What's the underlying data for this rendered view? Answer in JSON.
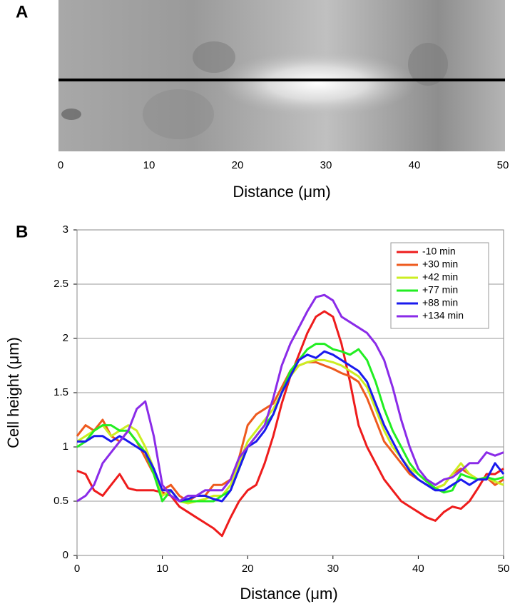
{
  "panel_a": {
    "label": "A",
    "xlabel": "Distance (μm)",
    "xlim": [
      0,
      50
    ],
    "xticks": [
      0,
      10,
      20,
      30,
      40,
      50
    ]
  },
  "chart_data": {
    "type": "line",
    "panel_label": "B",
    "xlabel": "Distance (μm)",
    "ylabel": "Cell height (μm)",
    "xlim": [
      0,
      50
    ],
    "xticks": [
      0,
      10,
      20,
      30,
      40,
      50
    ],
    "ylim": [
      0,
      3
    ],
    "yticks": [
      0,
      0.5,
      1,
      1.5,
      2,
      2.5,
      3
    ],
    "grid": true,
    "legend": "upper right",
    "x": [
      0,
      1,
      2,
      3,
      4,
      5,
      6,
      7,
      8,
      9,
      10,
      11,
      12,
      13,
      14,
      15,
      16,
      17,
      18,
      19,
      20,
      21,
      22,
      23,
      24,
      25,
      26,
      27,
      28,
      29,
      30,
      31,
      32,
      33,
      34,
      35,
      36,
      37,
      38,
      39,
      40,
      41,
      42,
      43,
      44,
      45,
      46,
      47,
      48,
      49,
      50
    ],
    "series": [
      {
        "name": "-10 min",
        "color": "#ee1c1c",
        "values": [
          0.78,
          0.75,
          0.6,
          0.55,
          0.65,
          0.75,
          0.62,
          0.6,
          0.6,
          0.6,
          0.58,
          0.55,
          0.45,
          0.4,
          0.35,
          0.3,
          0.25,
          0.18,
          0.35,
          0.5,
          0.6,
          0.65,
          0.85,
          1.1,
          1.4,
          1.65,
          1.85,
          2.05,
          2.2,
          2.25,
          2.2,
          1.95,
          1.6,
          1.2,
          1.0,
          0.85,
          0.7,
          0.6,
          0.5,
          0.45,
          0.4,
          0.35,
          0.32,
          0.4,
          0.45,
          0.43,
          0.5,
          0.62,
          0.75,
          0.75,
          0.8
        ]
      },
      {
        "name": "+30 min",
        "color": "#ee5a1e",
        "values": [
          1.1,
          1.2,
          1.15,
          1.25,
          1.1,
          1.05,
          1.15,
          1.05,
          0.9,
          0.75,
          0.6,
          0.65,
          0.55,
          0.5,
          0.55,
          0.55,
          0.65,
          0.65,
          0.7,
          0.9,
          1.2,
          1.3,
          1.35,
          1.4,
          1.55,
          1.7,
          1.75,
          1.78,
          1.78,
          1.75,
          1.72,
          1.68,
          1.65,
          1.6,
          1.45,
          1.25,
          1.05,
          0.95,
          0.85,
          0.75,
          0.7,
          0.65,
          0.62,
          0.65,
          0.75,
          0.8,
          0.75,
          0.7,
          0.72,
          0.65,
          0.7
        ]
      },
      {
        "name": "+42 min",
        "color": "#ccee22",
        "values": [
          1.05,
          1.1,
          1.15,
          1.2,
          1.1,
          1.15,
          1.2,
          1.15,
          1.0,
          0.8,
          0.55,
          0.6,
          0.5,
          0.48,
          0.5,
          0.52,
          0.55,
          0.55,
          0.65,
          0.85,
          1.05,
          1.15,
          1.25,
          1.35,
          1.5,
          1.65,
          1.75,
          1.78,
          1.8,
          1.8,
          1.78,
          1.75,
          1.7,
          1.65,
          1.55,
          1.35,
          1.15,
          1.0,
          0.9,
          0.8,
          0.75,
          0.68,
          0.62,
          0.65,
          0.75,
          0.85,
          0.75,
          0.7,
          0.72,
          0.68,
          0.65
        ]
      },
      {
        "name": "+77 min",
        "color": "#22ee22",
        "values": [
          1.0,
          1.05,
          1.15,
          1.2,
          1.2,
          1.15,
          1.15,
          1.05,
          0.95,
          0.75,
          0.5,
          0.6,
          0.5,
          0.5,
          0.5,
          0.5,
          0.5,
          0.55,
          0.6,
          0.8,
          1.0,
          1.1,
          1.2,
          1.3,
          1.5,
          1.7,
          1.8,
          1.9,
          1.95,
          1.95,
          1.9,
          1.88,
          1.85,
          1.9,
          1.8,
          1.6,
          1.35,
          1.15,
          1.0,
          0.85,
          0.75,
          0.68,
          0.62,
          0.58,
          0.6,
          0.75,
          0.72,
          0.7,
          0.72,
          0.7,
          0.72
        ]
      },
      {
        "name": "+88 min",
        "color": "#1a1aee",
        "values": [
          1.05,
          1.05,
          1.1,
          1.1,
          1.05,
          1.1,
          1.05,
          1.0,
          0.95,
          0.8,
          0.6,
          0.6,
          0.5,
          0.52,
          0.55,
          0.55,
          0.52,
          0.5,
          0.6,
          0.8,
          1.0,
          1.05,
          1.15,
          1.3,
          1.5,
          1.65,
          1.8,
          1.85,
          1.82,
          1.88,
          1.85,
          1.8,
          1.75,
          1.7,
          1.6,
          1.4,
          1.2,
          1.05,
          0.9,
          0.78,
          0.7,
          0.65,
          0.6,
          0.6,
          0.65,
          0.7,
          0.65,
          0.7,
          0.7,
          0.85,
          0.75
        ]
      },
      {
        "name": "+134 min",
        "color": "#8a2be8",
        "values": [
          0.5,
          0.55,
          0.65,
          0.85,
          0.95,
          1.05,
          1.15,
          1.35,
          1.42,
          1.1,
          0.65,
          0.55,
          0.5,
          0.55,
          0.55,
          0.6,
          0.6,
          0.6,
          0.7,
          0.9,
          1.0,
          1.1,
          1.2,
          1.45,
          1.75,
          1.95,
          2.1,
          2.25,
          2.38,
          2.4,
          2.35,
          2.2,
          2.15,
          2.1,
          2.05,
          1.95,
          1.8,
          1.55,
          1.25,
          1.0,
          0.8,
          0.7,
          0.65,
          0.7,
          0.72,
          0.78,
          0.85,
          0.85,
          0.95,
          0.92,
          0.95
        ]
      }
    ]
  }
}
